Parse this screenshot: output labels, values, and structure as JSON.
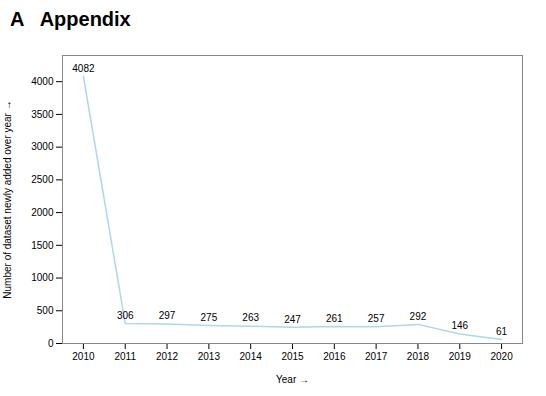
{
  "chart_data": {
    "type": "line",
    "title": "A   Appendix",
    "x": [
      2010,
      2011,
      2012,
      2013,
      2014,
      2015,
      2016,
      2017,
      2018,
      2019,
      2020
    ],
    "values": [
      4082,
      306,
      297,
      275,
      263,
      247,
      261,
      257,
      292,
      146,
      61
    ],
    "color": "#add8e6",
    "xlabel": "Year",
    "ylabel": "Number of dataset newly added over year",
    "xlim": [
      2009.5,
      2020.5
    ],
    "xticks": [
      2010,
      2011,
      2012,
      2013,
      2014,
      2015,
      2016,
      2017,
      2018,
      2019,
      2020
    ],
    "ylim": [
      0,
      4400
    ],
    "yticks": [
      0,
      500,
      1000,
      1500,
      2000,
      2500,
      3000,
      3500,
      4000
    ],
    "grid": false,
    "data_labels": true
  }
}
